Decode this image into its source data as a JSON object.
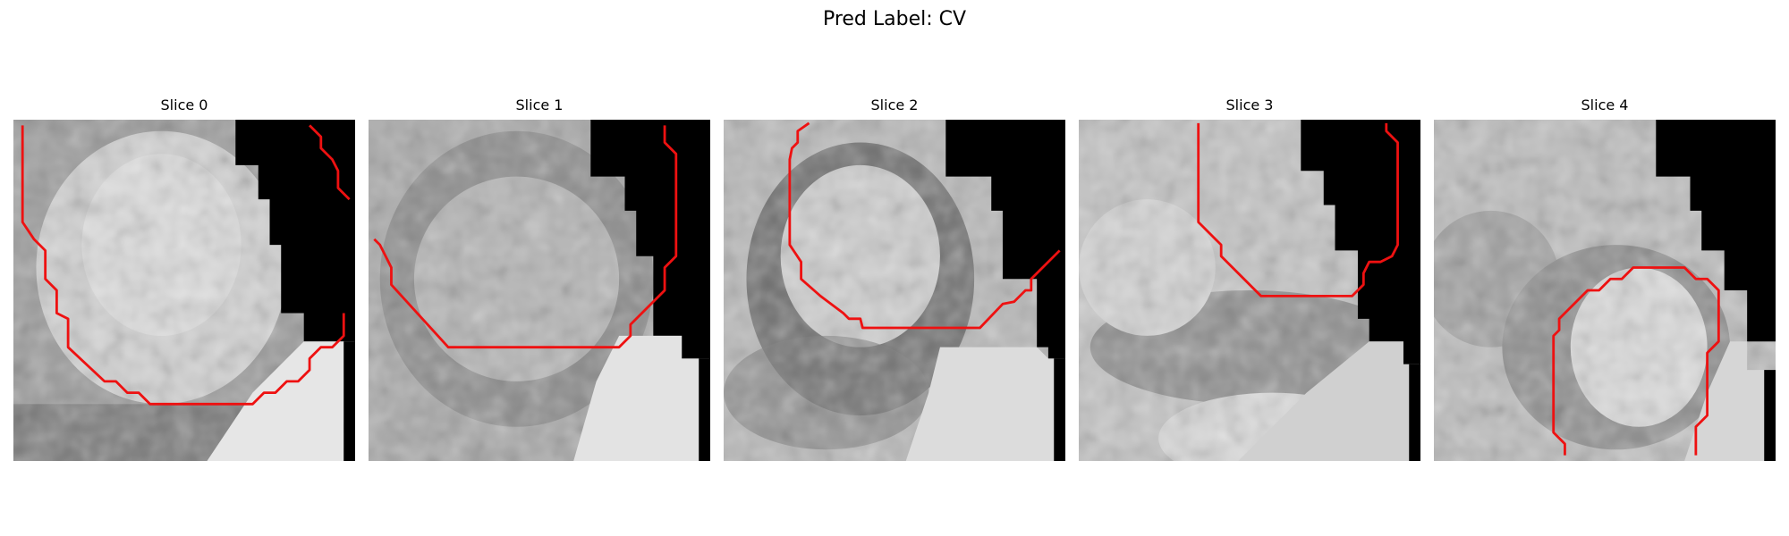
{
  "figure": {
    "title": "Pred Label: CV"
  },
  "panels": [
    {
      "title": "Slice 0"
    },
    {
      "title": "Slice 1"
    },
    {
      "title": "Slice 2"
    },
    {
      "title": "Slice 3"
    },
    {
      "title": "Slice 4"
    }
  ],
  "colors": {
    "contour": "#ee1111",
    "background": "#ffffff"
  }
}
